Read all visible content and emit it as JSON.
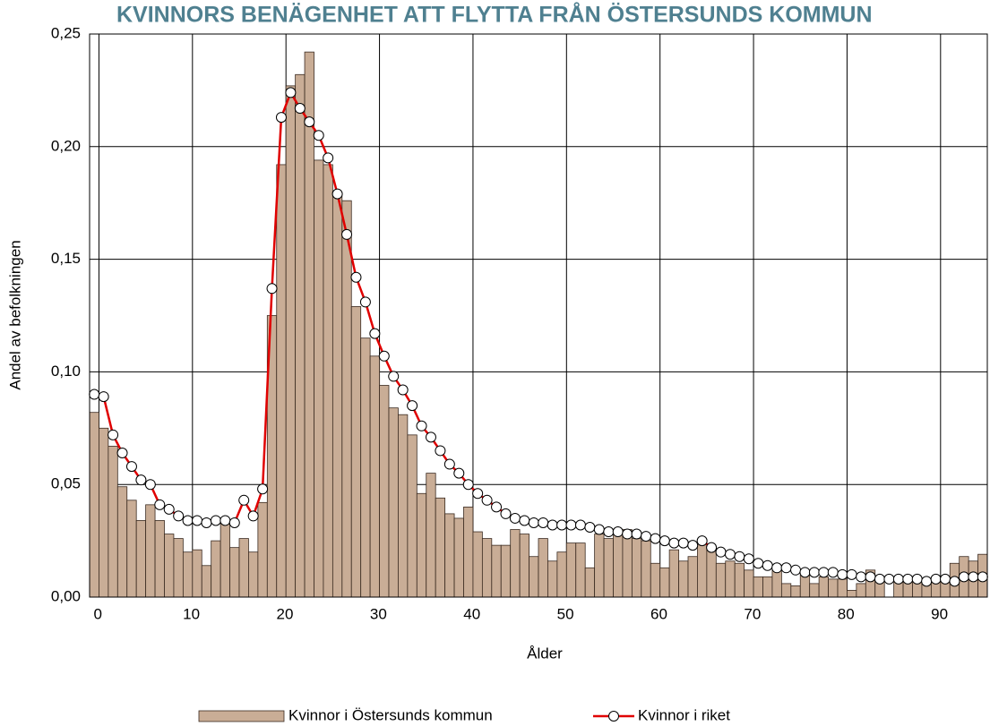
{
  "chart_data": {
    "type": "bar",
    "title": "KVINNORS BENÄGENHET ATT FLYTTA FRÅN ÖSTERSUNDS KOMMUN",
    "x_label": "Ålder",
    "y_label": "Andel av befolkningen",
    "x": [
      0,
      1,
      2,
      3,
      4,
      5,
      6,
      7,
      8,
      9,
      10,
      11,
      12,
      13,
      14,
      15,
      16,
      17,
      18,
      19,
      20,
      21,
      22,
      23,
      24,
      25,
      26,
      27,
      28,
      29,
      30,
      31,
      32,
      33,
      34,
      35,
      36,
      37,
      38,
      39,
      40,
      41,
      42,
      43,
      44,
      45,
      46,
      47,
      48,
      49,
      50,
      51,
      52,
      53,
      54,
      55,
      56,
      57,
      58,
      59,
      60,
      61,
      62,
      63,
      64,
      65,
      66,
      67,
      68,
      69,
      70,
      71,
      72,
      73,
      74,
      75,
      76,
      77,
      78,
      79,
      80,
      81,
      82,
      83,
      84,
      85,
      86,
      87,
      88,
      89,
      90,
      91,
      92,
      93,
      94,
      95
    ],
    "series": [
      {
        "name": "Kvinnor i Östersunds kommun",
        "type": "bar",
        "color": "#c9ad96",
        "values": [
          0.082,
          0.075,
          0.067,
          0.049,
          0.043,
          0.034,
          0.041,
          0.034,
          0.028,
          0.026,
          0.02,
          0.021,
          0.014,
          0.025,
          0.034,
          0.022,
          0.026,
          0.02,
          0.042,
          0.125,
          0.192,
          0.227,
          0.232,
          0.242,
          0.194,
          0.192,
          0.178,
          0.176,
          0.129,
          0.115,
          0.107,
          0.094,
          0.084,
          0.081,
          0.072,
          0.046,
          0.055,
          0.044,
          0.037,
          0.035,
          0.04,
          0.029,
          0.026,
          0.023,
          0.023,
          0.03,
          0.028,
          0.018,
          0.026,
          0.016,
          0.02,
          0.024,
          0.024,
          0.013,
          0.028,
          0.026,
          0.028,
          0.03,
          0.026,
          0.025,
          0.015,
          0.013,
          0.021,
          0.016,
          0.018,
          0.025,
          0.022,
          0.015,
          0.016,
          0.015,
          0.012,
          0.009,
          0.009,
          0.012,
          0.006,
          0.005,
          0.01,
          0.006,
          0.009,
          0.008,
          0.008,
          0.003,
          0.006,
          0.012,
          0.007,
          0.0,
          0.008,
          0.007,
          0.008,
          0.007,
          0.007,
          0.007,
          0.015,
          0.018,
          0.016,
          0.019
        ]
      },
      {
        "name": "Kvinnor i riket",
        "type": "line",
        "color": "#e00000",
        "values": [
          0.09,
          0.089,
          0.072,
          0.064,
          0.058,
          0.052,
          0.05,
          0.041,
          0.039,
          0.036,
          0.034,
          0.034,
          0.033,
          0.034,
          0.034,
          0.033,
          0.043,
          0.036,
          0.048,
          0.137,
          0.213,
          0.224,
          0.217,
          0.211,
          0.205,
          0.195,
          0.179,
          0.161,
          0.142,
          0.131,
          0.117,
          0.107,
          0.098,
          0.092,
          0.085,
          0.076,
          0.071,
          0.065,
          0.059,
          0.055,
          0.05,
          0.046,
          0.043,
          0.04,
          0.037,
          0.035,
          0.034,
          0.033,
          0.033,
          0.032,
          0.032,
          0.032,
          0.032,
          0.031,
          0.03,
          0.029,
          0.029,
          0.028,
          0.028,
          0.027,
          0.026,
          0.025,
          0.024,
          0.024,
          0.023,
          0.025,
          0.022,
          0.02,
          0.019,
          0.018,
          0.017,
          0.015,
          0.014,
          0.013,
          0.013,
          0.012,
          0.011,
          0.011,
          0.011,
          0.011,
          0.01,
          0.01,
          0.009,
          0.009,
          0.008,
          0.008,
          0.008,
          0.008,
          0.008,
          0.007,
          0.008,
          0.008,
          0.007,
          0.009,
          0.009,
          0.009
        ]
      }
    ],
    "xlim": [
      -0.5,
      95.5
    ],
    "xticks": [
      0,
      10,
      20,
      30,
      40,
      50,
      60,
      70,
      80,
      90
    ],
    "ylim": [
      0,
      0.25
    ],
    "yticks": [
      {
        "value": 0,
        "label": "0,00"
      },
      {
        "value": 0.05,
        "label": "0,05"
      },
      {
        "value": 0.1,
        "label": "0,10"
      },
      {
        "value": 0.15,
        "label": "0,15"
      },
      {
        "value": 0.2,
        "label": "0,20"
      },
      {
        "value": 0.25,
        "label": "0,25"
      }
    ],
    "grid": true,
    "legend": "bottom"
  }
}
